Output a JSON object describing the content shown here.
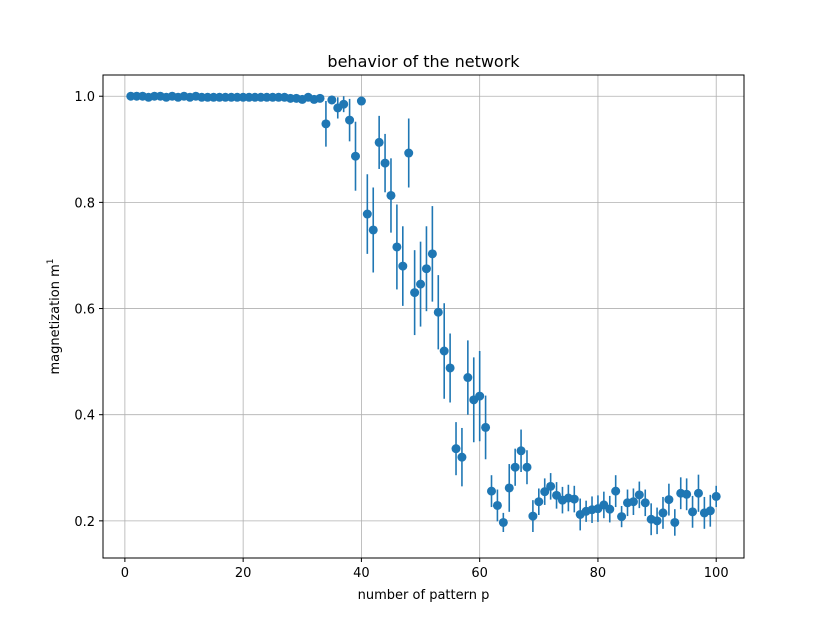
{
  "chart_data": {
    "type": "scatter",
    "title": "behavior of the network",
    "xlabel": "number of pattern p",
    "ylabel_main": "magnetization m",
    "ylabel_sup": "1",
    "xlim": [
      -3.7,
      104.7
    ],
    "ylim": [
      0.13,
      1.04
    ],
    "xticks": [
      0,
      20,
      40,
      60,
      80,
      100
    ],
    "xtick_labels": [
      "0",
      "20",
      "40",
      "60",
      "80",
      "100"
    ],
    "yticks": [
      0.2,
      0.4,
      0.6,
      0.8,
      1.0
    ],
    "ytick_labels": [
      "0.2",
      "0.4",
      "0.6",
      "0.8",
      "1.0"
    ],
    "grid": true,
    "marker_color": "#1f77b4",
    "x": [
      1,
      2,
      3,
      4,
      5,
      6,
      7,
      8,
      9,
      10,
      11,
      12,
      13,
      14,
      15,
      16,
      17,
      18,
      19,
      20,
      21,
      22,
      23,
      24,
      25,
      26,
      27,
      28,
      29,
      30,
      31,
      32,
      33,
      34,
      35,
      36,
      37,
      38,
      39,
      40,
      41,
      42,
      43,
      44,
      45,
      46,
      47,
      48,
      49,
      50,
      51,
      52,
      53,
      54,
      55,
      56,
      57,
      58,
      59,
      60,
      61,
      62,
      63,
      64,
      65,
      66,
      67,
      68,
      69,
      70,
      71,
      72,
      73,
      74,
      75,
      76,
      77,
      78,
      79,
      80,
      81,
      82,
      83,
      84,
      85,
      86,
      87,
      88,
      89,
      90,
      91,
      92,
      93,
      94,
      95,
      96,
      97,
      98,
      99,
      100
    ],
    "y": [
      1.0,
      1.0,
      1.0,
      0.998,
      1.0,
      1.0,
      0.998,
      1.0,
      0.998,
      1.0,
      0.998,
      1.0,
      0.998,
      0.998,
      0.998,
      0.998,
      0.998,
      0.998,
      0.998,
      0.998,
      0.998,
      0.998,
      0.998,
      0.998,
      0.998,
      0.998,
      0.998,
      0.996,
      0.996,
      0.994,
      0.998,
      0.994,
      0.996,
      0.948,
      0.993,
      0.978,
      0.985,
      0.955,
      0.887,
      0.991,
      0.778,
      0.748,
      0.913,
      0.874,
      0.813,
      0.716,
      0.68,
      0.893,
      0.63,
      0.646,
      0.675,
      0.703,
      0.593,
      0.52,
      0.488,
      0.336,
      0.32,
      0.47,
      0.428,
      0.435,
      0.376,
      0.256,
      0.229,
      0.197,
      0.262,
      0.301,
      0.332,
      0.301,
      0.209,
      0.236,
      0.255,
      0.265,
      0.248,
      0.239,
      0.243,
      0.241,
      0.212,
      0.218,
      0.221,
      0.223,
      0.23,
      0.222,
      0.256,
      0.208,
      0.234,
      0.236,
      0.249,
      0.234,
      0.203,
      0.2,
      0.215,
      0.24,
      0.197,
      0.252,
      0.25,
      0.217,
      0.252,
      0.215,
      0.219,
      0.246
    ],
    "yerr": [
      0.002,
      0.002,
      0.002,
      0.003,
      0.002,
      0.002,
      0.003,
      0.002,
      0.003,
      0.002,
      0.003,
      0.002,
      0.003,
      0.003,
      0.003,
      0.003,
      0.003,
      0.003,
      0.003,
      0.003,
      0.003,
      0.003,
      0.003,
      0.003,
      0.003,
      0.003,
      0.003,
      0.004,
      0.004,
      0.005,
      0.003,
      0.006,
      0.005,
      0.043,
      0.008,
      0.02,
      0.015,
      0.04,
      0.065,
      0.008,
      0.075,
      0.08,
      0.05,
      0.055,
      0.07,
      0.08,
      0.075,
      0.065,
      0.08,
      0.08,
      0.08,
      0.09,
      0.07,
      0.09,
      0.065,
      0.05,
      0.055,
      0.07,
      0.08,
      0.085,
      0.06,
      0.03,
      0.03,
      0.018,
      0.045,
      0.035,
      0.04,
      0.032,
      0.03,
      0.025,
      0.025,
      0.025,
      0.025,
      0.025,
      0.025,
      0.025,
      0.03,
      0.02,
      0.025,
      0.025,
      0.025,
      0.025,
      0.03,
      0.02,
      0.025,
      0.025,
      0.025,
      0.025,
      0.03,
      0.025,
      0.03,
      0.03,
      0.025,
      0.03,
      0.03,
      0.03,
      0.035,
      0.03,
      0.03,
      0.02
    ]
  }
}
